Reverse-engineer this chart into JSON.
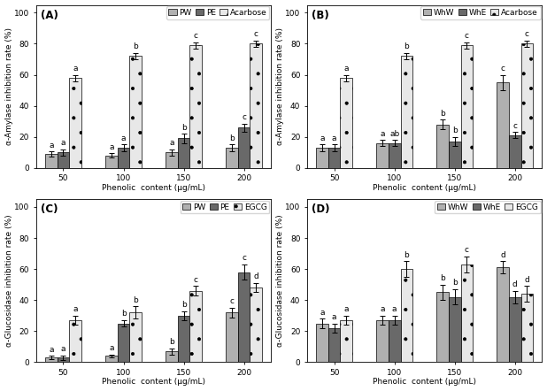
{
  "panels": [
    {
      "label": "(A)",
      "legend_labels": [
        "PW",
        "PE",
        "Acarbose"
      ],
      "ylabel": "α-Amylase inhibition rate (%)",
      "xlabel": "Phenolic  content (μg/mL)",
      "xlabels": [
        "50",
        "100",
        "150",
        "200"
      ],
      "ylim": [
        0,
        105
      ],
      "yticks": [
        0,
        20,
        40,
        60,
        80,
        100
      ],
      "bar_values": [
        [
          9,
          8,
          10,
          13
        ],
        [
          10,
          13,
          19,
          26
        ],
        [
          58,
          72,
          79,
          80
        ]
      ],
      "bar_errors": [
        [
          1.5,
          1.5,
          2,
          2
        ],
        [
          2,
          2,
          3,
          2.5
        ],
        [
          2,
          2,
          2,
          2
        ]
      ],
      "letters": [
        [
          "a",
          "a",
          "a",
          "b"
        ],
        [
          "a",
          "a",
          "b",
          "c"
        ],
        [
          "a",
          "b",
          "c",
          "c"
        ]
      ],
      "bar_colors": [
        "#b0b0b0",
        "#696969",
        "#e8e8e8"
      ],
      "hatches": [
        "",
        "",
        "."
      ]
    },
    {
      "label": "(B)",
      "legend_labels": [
        "WhW",
        "WhE",
        "Acarbose"
      ],
      "ylabel": "α-Amylase inhibition rate (%)",
      "xlabel": "Phenolic  content (μg/mL)",
      "xlabels": [
        "50",
        "100",
        "150",
        "200"
      ],
      "ylim": [
        0,
        105
      ],
      "yticks": [
        0,
        20,
        40,
        60,
        80,
        100
      ],
      "bar_values": [
        [
          13,
          16,
          28,
          55
        ],
        [
          13,
          16,
          17,
          21
        ],
        [
          58,
          72,
          79,
          80
        ]
      ],
      "bar_errors": [
        [
          2,
          2,
          3,
          5
        ],
        [
          2,
          2,
          3,
          2
        ],
        [
          2,
          2,
          2,
          2
        ]
      ],
      "letters": [
        [
          "a",
          "a",
          "b",
          "c"
        ],
        [
          "a",
          "ab",
          "b",
          "c"
        ],
        [
          "a",
          "b",
          "c",
          "c"
        ]
      ],
      "bar_colors": [
        "#b0b0b0",
        "#696969",
        "#e8e8e8"
      ],
      "hatches": [
        "",
        "",
        "."
      ]
    },
    {
      "label": "(C)",
      "legend_labels": [
        "PW",
        "PE",
        "EGCG"
      ],
      "ylabel": "α-Glucosidase inhibition rate (%)",
      "xlabel": "Phenolic  content (μg/mL)",
      "xlabels": [
        "50",
        "100",
        "150",
        "200"
      ],
      "ylim": [
        0,
        105
      ],
      "yticks": [
        0,
        20,
        40,
        60,
        80,
        100
      ],
      "bar_values": [
        [
          3,
          4,
          7,
          32
        ],
        [
          3,
          25,
          30,
          58
        ],
        [
          27,
          32,
          46,
          48
        ]
      ],
      "bar_errors": [
        [
          1,
          1,
          2,
          3
        ],
        [
          1.5,
          2,
          3,
          5
        ],
        [
          3,
          4,
          3,
          3
        ]
      ],
      "letters": [
        [
          "a",
          "a",
          "b",
          "c"
        ],
        [
          "a",
          "b",
          "b",
          "c"
        ],
        [
          "a",
          "b",
          "c",
          "d"
        ]
      ],
      "bar_colors": [
        "#b0b0b0",
        "#696969",
        "#e8e8e8"
      ],
      "hatches": [
        "",
        "",
        "."
      ]
    },
    {
      "label": "(D)",
      "legend_labels": [
        "WhW",
        "WhE",
        "EGCG"
      ],
      "ylabel": "α-Glucosidase inhibition rate (%)",
      "xlabel": "Phenolic  content (μg/mL)",
      "xlabels": [
        "50",
        "100",
        "150",
        "200"
      ],
      "ylim": [
        0,
        105
      ],
      "yticks": [
        0,
        20,
        40,
        60,
        80,
        100
      ],
      "bar_values": [
        [
          25,
          27,
          45,
          61
        ],
        [
          22,
          27,
          42,
          42
        ],
        [
          27,
          60,
          63,
          44
        ]
      ],
      "bar_errors": [
        [
          3,
          3,
          5,
          4
        ],
        [
          3,
          3,
          5,
          4
        ],
        [
          3,
          5,
          5,
          5
        ]
      ],
      "letters": [
        [
          "a",
          "a",
          "b",
          "d"
        ],
        [
          "a",
          "a",
          "b",
          "d"
        ],
        [
          "a",
          "b",
          "c",
          "d"
        ]
      ],
      "bar_colors": [
        "#b0b0b0",
        "#696969",
        "#e8e8e8"
      ],
      "hatches": [
        "",
        "",
        "."
      ]
    }
  ],
  "figure_bgcolor": "#ffffff",
  "bar_width": 0.2,
  "fontsize_label": 6.5,
  "fontsize_tick": 6.5,
  "fontsize_legend": 6.5,
  "fontsize_letter": 6.5,
  "fontsize_panel": 8.5
}
